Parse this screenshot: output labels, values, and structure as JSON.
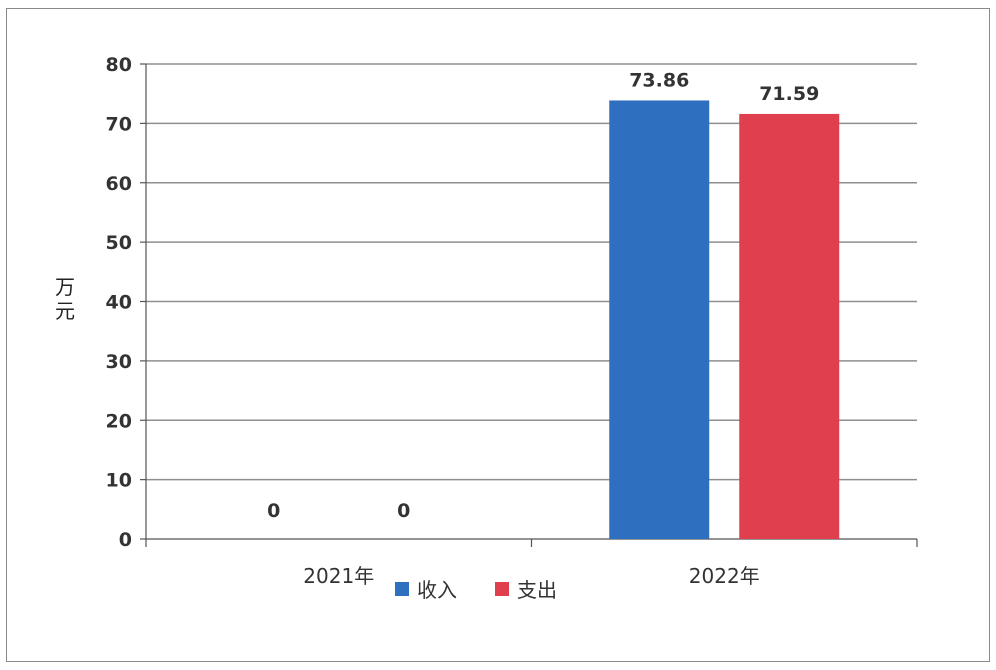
{
  "chart_data": {
    "type": "bar",
    "categories": [
      "2021年",
      "2022年"
    ],
    "series": [
      {
        "name": "收入",
        "values": [
          0,
          73.86
        ],
        "color": "#2f6fbf"
      },
      {
        "name": "支出",
        "values": [
          0,
          71.59
        ],
        "color": "#e0404e"
      }
    ],
    "ylabel": "万元",
    "ylim": [
      0,
      80
    ],
    "yticks": [
      0,
      10,
      20,
      30,
      40,
      50,
      60,
      70,
      80
    ],
    "grid": true,
    "legend_position": "bottom"
  }
}
